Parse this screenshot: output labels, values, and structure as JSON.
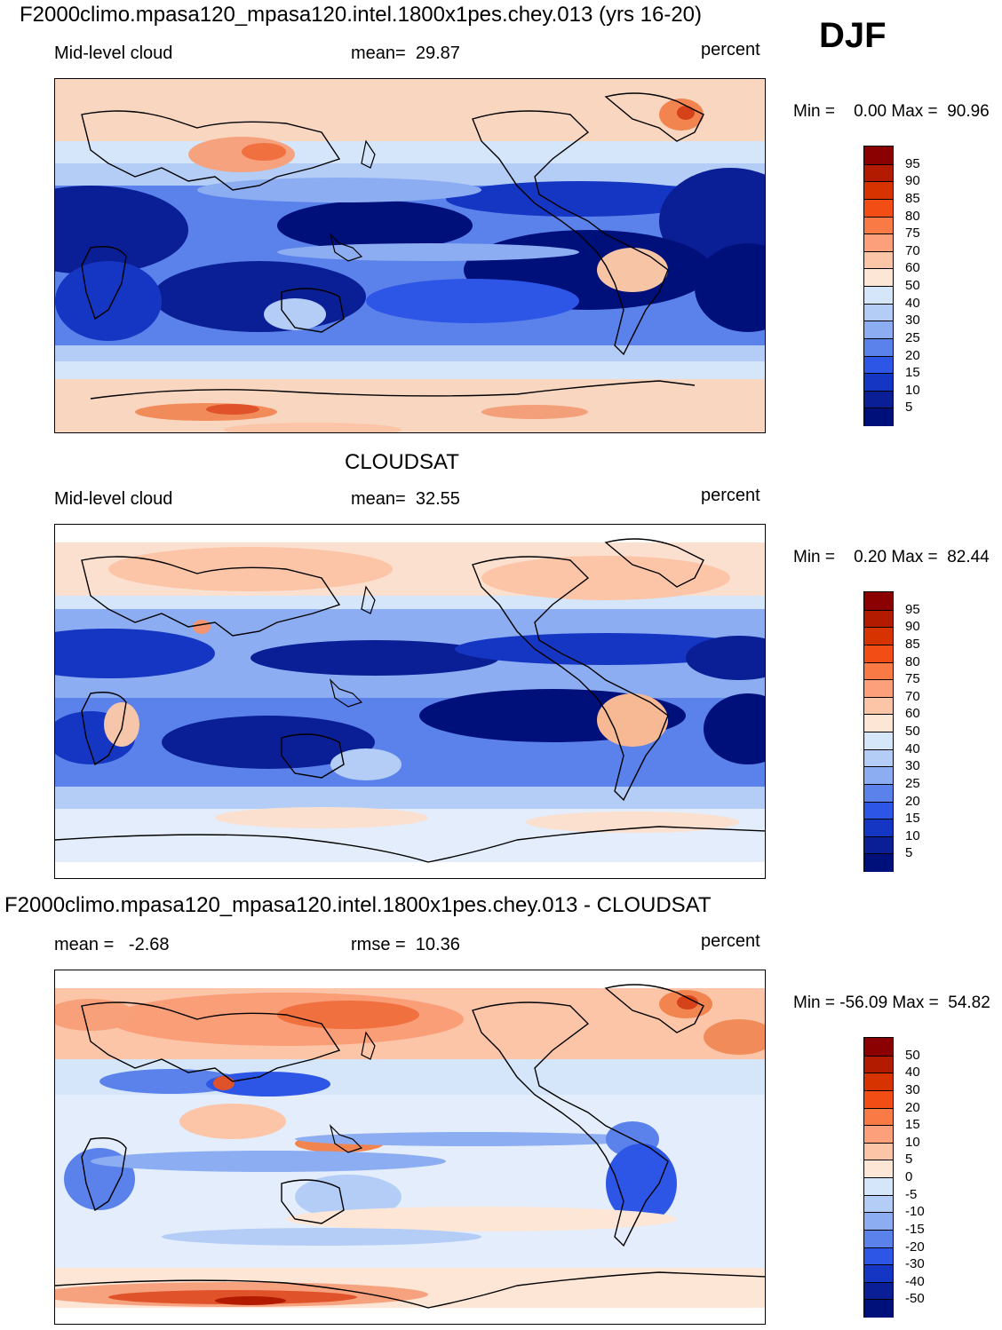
{
  "season": "DJF",
  "panels": [
    {
      "id": "model",
      "heading": "F2000climo.mpasa120_mpasa120.intel.1800x1pes.chey.013 (yrs 16-20)",
      "left_label": "Mid-level cloud",
      "center_label": "mean=  29.87",
      "right_label": "percent",
      "minmax": "Min =    0.00 Max =  90.96",
      "colorbar_labels": [
        "95",
        "90",
        "85",
        "80",
        "75",
        "70",
        "60",
        "50",
        "40",
        "30",
        "25",
        "20",
        "15",
        "10",
        "5"
      ],
      "colorbar_colors": [
        "#8b0000",
        "#b31b00",
        "#d63300",
        "#f24d14",
        "#fa7a45",
        "#fca07c",
        "#fcc5a8",
        "#fde6d5",
        "#d5e5fa",
        "#b4cdf7",
        "#8cadf2",
        "#5a82ea",
        "#2d55e6",
        "#1536c2",
        "#0a1f96",
        "#00107a"
      ]
    },
    {
      "id": "obs",
      "heading": "CLOUDSAT",
      "left_label": "Mid-level cloud",
      "center_label": "mean=  32.55",
      "right_label": "percent",
      "minmax": "Min =    0.20 Max =  82.44",
      "colorbar_labels": [
        "95",
        "90",
        "85",
        "80",
        "75",
        "70",
        "60",
        "50",
        "40",
        "30",
        "25",
        "20",
        "15",
        "10",
        "5"
      ],
      "colorbar_colors": [
        "#8b0000",
        "#b31b00",
        "#d63300",
        "#f24d14",
        "#fa7a45",
        "#fca07c",
        "#fcc5a8",
        "#fde6d5",
        "#d5e5fa",
        "#b4cdf7",
        "#8cadf2",
        "#5a82ea",
        "#2d55e6",
        "#1536c2",
        "#0a1f96",
        "#00107a"
      ]
    },
    {
      "id": "diff",
      "heading": "F2000climo.mpasa120_mpasa120.intel.1800x1pes.chey.013 - CLOUDSAT",
      "left_label": "mean =   -2.68",
      "center_label": "rmse =  10.36",
      "right_label": "percent",
      "minmax": "Min = -56.09 Max =  54.82",
      "colorbar_labels": [
        "50",
        "40",
        "30",
        "20",
        "15",
        "10",
        "5",
        "0",
        "-5",
        "-10",
        "-15",
        "-20",
        "-30",
        "-40",
        "-50"
      ],
      "colorbar_colors": [
        "#8b0000",
        "#b31b00",
        "#d63300",
        "#f24d14",
        "#fa7a45",
        "#fca07c",
        "#fcc5a8",
        "#fde6d5",
        "#d5e5fa",
        "#b4cdf7",
        "#8cadf2",
        "#5a82ea",
        "#2d55e6",
        "#1536c2",
        "#0a1f96",
        "#00107a"
      ]
    }
  ]
}
